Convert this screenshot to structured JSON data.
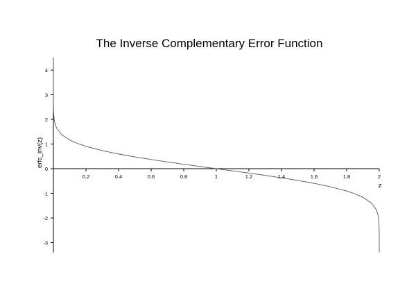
{
  "chart_data": {
    "type": "line",
    "title": "The Inverse Complementary Error Function",
    "xlabel": "z",
    "ylabel": "erfc_inv(z)",
    "xlim": [
      0,
      2
    ],
    "ylim": [
      -3.4,
      4.5
    ],
    "grid": false,
    "xticks": [
      0.2,
      0.4,
      0.6,
      0.8,
      1,
      1.2,
      1.4,
      1.6,
      1.8,
      2
    ],
    "xtick_labels": [
      "0.2",
      "0.4",
      "0.6",
      "0.8",
      "1",
      "1.2",
      "1.4",
      "1.6",
      "1.8",
      "2"
    ],
    "yticks": [
      -3,
      -2,
      -1,
      0,
      1,
      2,
      3,
      4
    ],
    "ytick_labels": [
      "-3",
      "-2",
      "-1",
      "0",
      "1",
      "2",
      "3",
      "4"
    ],
    "series": [
      {
        "color": "#555555",
        "x": [
          1e-05,
          0.0001,
          0.001,
          0.005,
          0.01,
          0.02,
          0.05,
          0.1,
          0.15,
          0.2,
          0.3,
          0.4,
          0.5,
          0.6,
          0.7,
          0.8,
          0.9,
          1.0,
          1.1,
          1.2,
          1.3,
          1.4,
          1.5,
          1.6,
          1.7,
          1.8,
          1.85,
          1.9,
          1.95,
          1.98,
          1.99,
          1.995,
          1.999,
          1.9999
        ],
        "y": [
          3.123,
          2.751,
          2.327,
          1.985,
          1.822,
          1.645,
          1.386,
          1.163,
          1.018,
          0.906,
          0.733,
          0.595,
          0.477,
          0.371,
          0.273,
          0.179,
          0.089,
          0.0,
          -0.089,
          -0.179,
          -0.273,
          -0.371,
          -0.477,
          -0.595,
          -0.733,
          -0.906,
          -1.018,
          -1.163,
          -1.386,
          -1.645,
          -1.822,
          -1.985,
          -2.327,
          -2.751
        ]
      }
    ]
  }
}
